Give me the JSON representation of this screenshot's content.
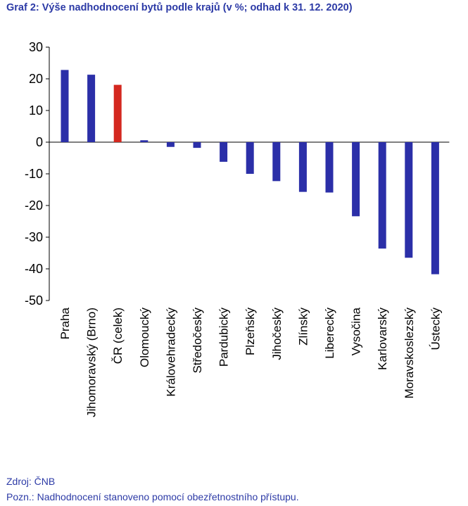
{
  "title": "Graf 2: Výše nadhodnocení bytů podle krajů (v %; odhad k 31. 12. 2020)",
  "source": "Zdroj: ČNB",
  "note": "Pozn.: Nadhodnocení stanoveno pomocí obezřetnostního přístupu.",
  "colors": {
    "default": "#2b2fa8",
    "highlight": "#d4281f"
  },
  "chart_data": {
    "type": "bar",
    "categories": [
      "Praha",
      "Jihomoravský (Brno)",
      "ČR (celek)",
      "Olomoucký",
      "Královehradecký",
      "Středočeský",
      "Pardubický",
      "Plzeňský",
      "Jihočeský",
      "Zlínský",
      "Liberecký",
      "Vysočina",
      "Karlovarský",
      "Moravskoslezský",
      "Ústecký"
    ],
    "values": [
      22.8,
      21.3,
      18.1,
      0.6,
      -1.5,
      -1.8,
      -6.2,
      -10.0,
      -12.3,
      -15.7,
      -15.9,
      -23.4,
      -33.6,
      -36.5,
      -41.7
    ],
    "highlight": [
      "ČR (celek)"
    ],
    "ylim": [
      -50,
      30
    ],
    "yticks": [
      "30",
      "20",
      "10",
      "0",
      "-10",
      "-20",
      "-30",
      "-40",
      "-50"
    ],
    "xlabel": "",
    "ylabel": "",
    "grid": false
  }
}
